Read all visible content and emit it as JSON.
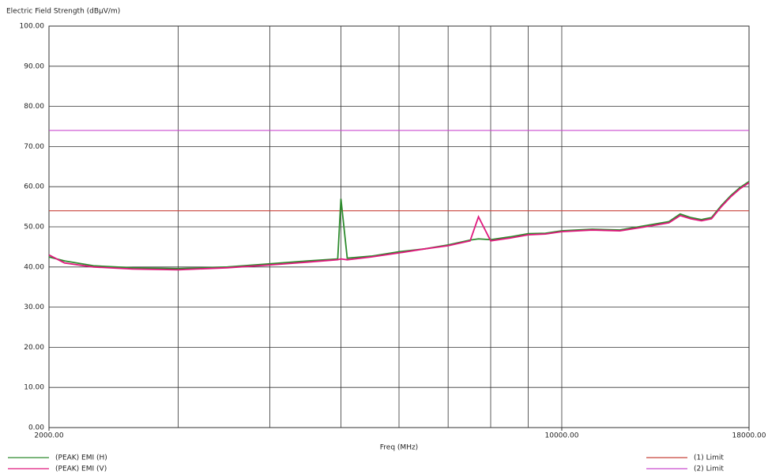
{
  "chart_data": {
    "type": "line",
    "y_label": "Electric Field Strength (dBµV/m)",
    "x_label": "Freq (MHz)",
    "x_log": true,
    "xlim": [
      2000,
      18000
    ],
    "xticks": [
      {
        "value": 2000,
        "label": "2000.00"
      },
      {
        "value": 10000,
        "label": "10000.00"
      },
      {
        "value": 18000,
        "label": "18000.00"
      }
    ],
    "xgrid": [
      3000,
      4000,
      5000,
      6000,
      7000,
      8000,
      9000,
      10000
    ],
    "ylim": [
      0,
      100
    ],
    "yticks": [
      {
        "value": 0,
        "label": "0.00"
      },
      {
        "value": 10,
        "label": "10.00"
      },
      {
        "value": 20,
        "label": "20.00"
      },
      {
        "value": 30,
        "label": "30.00"
      },
      {
        "value": 40,
        "label": "40.00"
      },
      {
        "value": 50,
        "label": "50.00"
      },
      {
        "value": 60,
        "label": "60.00"
      },
      {
        "value": 70,
        "label": "70.00"
      },
      {
        "value": 80,
        "label": "80.00"
      },
      {
        "value": 90,
        "label": "90.00"
      },
      {
        "value": 100,
        "label": "100.00"
      }
    ],
    "grid": true,
    "x": [
      2000,
      2100,
      2300,
      2600,
      3000,
      3500,
      4000,
      4500,
      4950,
      5000,
      5100,
      5500,
      6000,
      6500,
      7000,
      7500,
      7700,
      8000,
      8500,
      9000,
      9500,
      10000,
      11000,
      12000,
      13000,
      14000,
      14500,
      15000,
      15500,
      16000,
      16500,
      17000,
      17500,
      18000
    ],
    "series": [
      {
        "name": "(PEAK) EMI (H)",
        "color": "#2e8b2e",
        "values": [
          42.5,
          41.5,
          40.3,
          39.8,
          39.6,
          40,
          40.8,
          41.5,
          42,
          57,
          42.2,
          42.7,
          43.8,
          44.5,
          45.5,
          46.7,
          47,
          46.8,
          47.5,
          48.3,
          48.4,
          49,
          49.4,
          49.2,
          50.3,
          51.3,
          53.2,
          52.3,
          51.8,
          52.3,
          55.3,
          57.8,
          59.8,
          61.3
        ]
      },
      {
        "name": "(PEAK) EMI (V)",
        "color": "#e0197d",
        "values": [
          43,
          41,
          40,
          39.5,
          39.3,
          39.8,
          40.5,
          41.2,
          41.8,
          42,
          41.8,
          42.5,
          43.5,
          44.5,
          45.3,
          46.5,
          52.5,
          46.5,
          47.2,
          48,
          48.2,
          48.8,
          49.2,
          49,
          50,
          51,
          52.8,
          52,
          51.5,
          52,
          55,
          57.5,
          59.5,
          61
        ]
      }
    ],
    "limits": [
      {
        "name": "(1) Limit",
        "color": "#c8433b",
        "value": 54
      },
      {
        "name": "(2) Limit",
        "color": "#c94ccf",
        "value": 74
      }
    ]
  }
}
